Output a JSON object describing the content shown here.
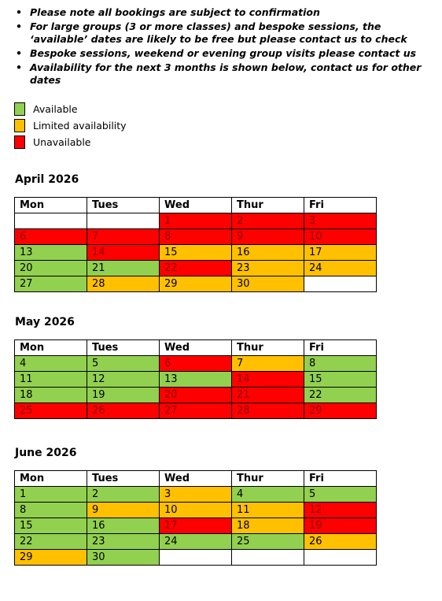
{
  "notes": [
    "Please note all bookings are subject to confirmation",
    "For large groups (3 or more classes) and bespoke sessions, the ‘available’ dates are likely to be free but please contact us to check",
    "Bespoke sessions, weekend or evening group visits please contact us",
    "Availability for the next 3 months is shown below, contact us for other dates"
  ],
  "bullet": "•",
  "colors": {
    "available": "#92d050",
    "limited": "#ffc000",
    "unavailable": "#ff0000"
  },
  "legend": [
    {
      "label": "Available",
      "status": "available"
    },
    {
      "label": "Limited availability",
      "status": "limited"
    },
    {
      "label": "Unavailable",
      "status": "unavailable"
    }
  ],
  "weekdays": [
    "Mon",
    "Tues",
    "Wed",
    "Thur",
    "Fri"
  ],
  "months": [
    {
      "title": "April 2026",
      "rows": [
        [
          {
            "d": "",
            "s": "e"
          },
          {
            "d": "",
            "s": "e"
          },
          {
            "d": "1",
            "s": "u"
          },
          {
            "d": "2",
            "s": "u"
          },
          {
            "d": "3",
            "s": "u"
          }
        ],
        [
          {
            "d": "6",
            "s": "u"
          },
          {
            "d": "7",
            "s": "u"
          },
          {
            "d": "8",
            "s": "u"
          },
          {
            "d": "9",
            "s": "u"
          },
          {
            "d": "10",
            "s": "u"
          }
        ],
        [
          {
            "d": "13",
            "s": "a"
          },
          {
            "d": "14",
            "s": "u"
          },
          {
            "d": "15",
            "s": "l"
          },
          {
            "d": "16",
            "s": "l"
          },
          {
            "d": "17",
            "s": "l"
          }
        ],
        [
          {
            "d": "20",
            "s": "a"
          },
          {
            "d": "21",
            "s": "a"
          },
          {
            "d": "22",
            "s": "u"
          },
          {
            "d": "23",
            "s": "l"
          },
          {
            "d": "24",
            "s": "l"
          }
        ],
        [
          {
            "d": "27",
            "s": "a"
          },
          {
            "d": "28",
            "s": "l"
          },
          {
            "d": "29",
            "s": "l"
          },
          {
            "d": "30",
            "s": "l"
          },
          {
            "d": "",
            "s": "e"
          }
        ]
      ]
    },
    {
      "title": "May 2026",
      "rows": [
        [
          {
            "d": "4",
            "s": "a"
          },
          {
            "d": "5",
            "s": "a"
          },
          {
            "d": "6",
            "s": "u"
          },
          {
            "d": "7",
            "s": "l"
          },
          {
            "d": "8",
            "s": "a"
          }
        ],
        [
          {
            "d": "11",
            "s": "a"
          },
          {
            "d": "12",
            "s": "a"
          },
          {
            "d": "13",
            "s": "a"
          },
          {
            "d": "14",
            "s": "u"
          },
          {
            "d": "15",
            "s": "a"
          }
        ],
        [
          {
            "d": "18",
            "s": "a"
          },
          {
            "d": "19",
            "s": "a"
          },
          {
            "d": "20",
            "s": "u"
          },
          {
            "d": "21",
            "s": "u"
          },
          {
            "d": "22",
            "s": "a"
          }
        ],
        [
          {
            "d": "25",
            "s": "u"
          },
          {
            "d": "26",
            "s": "u"
          },
          {
            "d": "27",
            "s": "u"
          },
          {
            "d": "28",
            "s": "u"
          },
          {
            "d": "29",
            "s": "u"
          }
        ]
      ]
    },
    {
      "title": "June 2026",
      "rows": [
        [
          {
            "d": "1",
            "s": "a"
          },
          {
            "d": "2",
            "s": "a"
          },
          {
            "d": "3",
            "s": "l"
          },
          {
            "d": "4",
            "s": "a"
          },
          {
            "d": "5",
            "s": "a"
          }
        ],
        [
          {
            "d": "8",
            "s": "a"
          },
          {
            "d": "9",
            "s": "l"
          },
          {
            "d": "10",
            "s": "l"
          },
          {
            "d": "11",
            "s": "l"
          },
          {
            "d": "12",
            "s": "u"
          }
        ],
        [
          {
            "d": "15",
            "s": "a"
          },
          {
            "d": "16",
            "s": "a"
          },
          {
            "d": "17",
            "s": "u"
          },
          {
            "d": "18",
            "s": "l"
          },
          {
            "d": "19",
            "s": "u"
          }
        ],
        [
          {
            "d": "22",
            "s": "a"
          },
          {
            "d": "23",
            "s": "a"
          },
          {
            "d": "24",
            "s": "a"
          },
          {
            "d": "25",
            "s": "a"
          },
          {
            "d": "26",
            "s": "l"
          }
        ],
        [
          {
            "d": "29",
            "s": "l"
          },
          {
            "d": "30",
            "s": "a"
          },
          {
            "d": "",
            "s": "e"
          },
          {
            "d": "",
            "s": "e"
          },
          {
            "d": "",
            "s": "e"
          }
        ]
      ]
    }
  ]
}
